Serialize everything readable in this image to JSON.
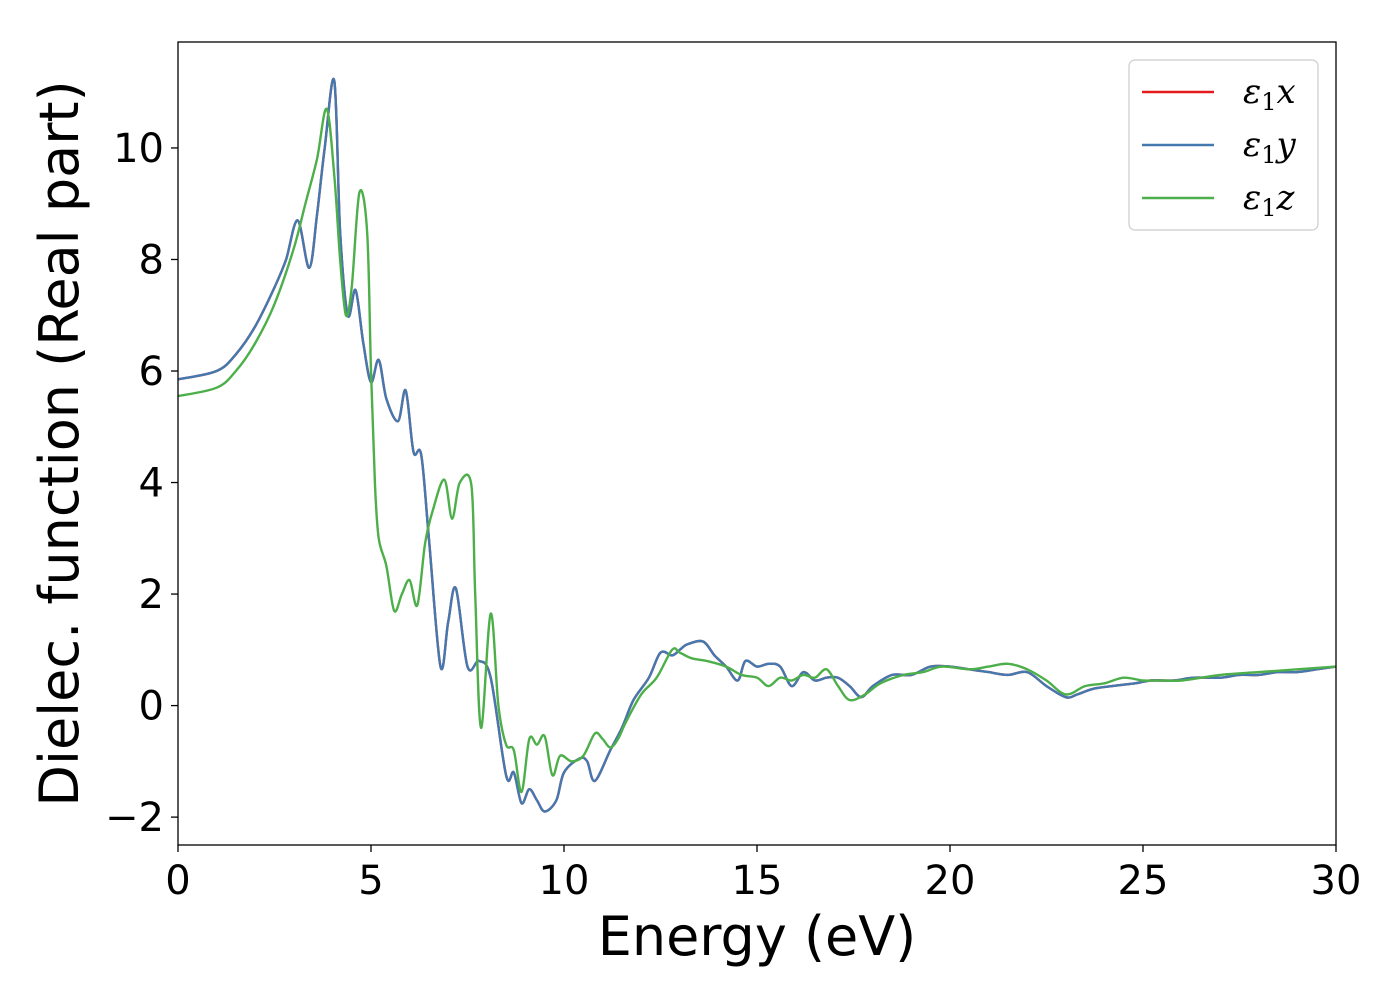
{
  "chart_data": {
    "type": "line",
    "title": "",
    "xlabel": "Energy (eV)",
    "ylabel": "Dielec. function (Real part)",
    "xlim": [
      0,
      30
    ],
    "ylim": [
      -2.5,
      11.9
    ],
    "xticks": [
      0,
      5,
      10,
      15,
      20,
      25,
      30
    ],
    "yticks": [
      -2,
      0,
      2,
      4,
      6,
      8,
      10
    ],
    "xtick_labels": [
      "0",
      "5",
      "10",
      "15",
      "20",
      "25",
      "30"
    ],
    "ytick_labels": [
      "−2",
      "0",
      "2",
      "4",
      "6",
      "8",
      "10"
    ],
    "grid": false,
    "legend_position": "top-right",
    "series": [
      {
        "name": "ε1x",
        "name_base": "ε",
        "name_sub": "1",
        "name_suffix": "x",
        "color": "#e41a1c",
        "x": [
          0,
          1,
          1.5,
          2,
          2.5,
          2.8,
          3.1,
          3.4,
          3.6,
          3.8,
          4.05,
          4.2,
          4.4,
          4.6,
          4.8,
          5.0,
          5.2,
          5.4,
          5.7,
          5.9,
          6.1,
          6.3,
          6.5,
          6.8,
          7.0,
          7.2,
          7.5,
          7.8,
          8.1,
          8.5,
          8.7,
          8.9,
          9.1,
          9.3,
          9.5,
          9.8,
          10.0,
          10.4,
          10.6,
          10.8,
          11.2,
          11.5,
          11.8,
          12.2,
          12.5,
          12.8,
          13.0,
          13.2,
          13.6,
          13.9,
          14.2,
          14.5,
          14.7,
          15.0,
          15.3,
          15.6,
          15.9,
          16.2,
          16.5,
          16.8,
          17.1,
          17.4,
          17.7,
          18.0,
          18.5,
          19.0,
          19.5,
          20.0,
          20.5,
          21.0,
          21.5,
          22.0,
          22.5,
          23.0,
          23.3,
          23.7,
          24.2,
          24.8,
          25.2,
          25.8,
          26.3,
          27.0,
          27.5,
          28.0,
          28.5,
          29.0,
          29.5,
          30.0
        ],
        "y": [
          5.85,
          6.0,
          6.3,
          6.8,
          7.5,
          8.0,
          8.7,
          7.85,
          8.8,
          10.0,
          11.2,
          8.5,
          7.0,
          7.45,
          6.5,
          5.8,
          6.2,
          5.5,
          5.1,
          5.65,
          4.55,
          4.5,
          3.0,
          0.7,
          1.5,
          2.1,
          0.7,
          0.8,
          0.5,
          -1.25,
          -1.2,
          -1.75,
          -1.5,
          -1.7,
          -1.9,
          -1.7,
          -1.2,
          -0.95,
          -1.0,
          -1.35,
          -0.8,
          -0.4,
          0.1,
          0.5,
          0.95,
          0.9,
          1.0,
          1.1,
          1.15,
          0.9,
          0.7,
          0.45,
          0.8,
          0.7,
          0.75,
          0.7,
          0.35,
          0.6,
          0.45,
          0.5,
          0.5,
          0.35,
          0.15,
          0.35,
          0.55,
          0.55,
          0.7,
          0.7,
          0.65,
          0.6,
          0.55,
          0.6,
          0.35,
          0.15,
          0.2,
          0.3,
          0.35,
          0.4,
          0.45,
          0.45,
          0.5,
          0.5,
          0.55,
          0.55,
          0.6,
          0.6,
          0.65,
          0.7
        ]
      },
      {
        "name": "ε1y",
        "name_base": "ε",
        "name_sub": "1",
        "name_suffix": "y",
        "color": "#4479b0",
        "x": [
          0,
          1,
          1.5,
          2,
          2.5,
          2.8,
          3.1,
          3.4,
          3.6,
          3.8,
          4.05,
          4.2,
          4.4,
          4.6,
          4.8,
          5.0,
          5.2,
          5.4,
          5.7,
          5.9,
          6.1,
          6.3,
          6.5,
          6.8,
          7.0,
          7.2,
          7.5,
          7.8,
          8.1,
          8.5,
          8.7,
          8.9,
          9.1,
          9.3,
          9.5,
          9.8,
          10.0,
          10.4,
          10.6,
          10.8,
          11.2,
          11.5,
          11.8,
          12.2,
          12.5,
          12.8,
          13.0,
          13.2,
          13.6,
          13.9,
          14.2,
          14.5,
          14.7,
          15.0,
          15.3,
          15.6,
          15.9,
          16.2,
          16.5,
          16.8,
          17.1,
          17.4,
          17.7,
          18.0,
          18.5,
          19.0,
          19.5,
          20.0,
          20.5,
          21.0,
          21.5,
          22.0,
          22.5,
          23.0,
          23.3,
          23.7,
          24.2,
          24.8,
          25.2,
          25.8,
          26.3,
          27.0,
          27.5,
          28.0,
          28.5,
          29.0,
          29.5,
          30.0
        ],
        "y": [
          5.85,
          6.0,
          6.3,
          6.8,
          7.5,
          8.0,
          8.7,
          7.85,
          8.8,
          10.0,
          11.2,
          8.5,
          7.0,
          7.45,
          6.5,
          5.8,
          6.2,
          5.5,
          5.1,
          5.65,
          4.55,
          4.5,
          3.0,
          0.7,
          1.5,
          2.1,
          0.7,
          0.8,
          0.5,
          -1.25,
          -1.2,
          -1.75,
          -1.5,
          -1.7,
          -1.9,
          -1.7,
          -1.2,
          -0.95,
          -1.0,
          -1.35,
          -0.8,
          -0.4,
          0.1,
          0.5,
          0.95,
          0.9,
          1.0,
          1.1,
          1.15,
          0.9,
          0.7,
          0.45,
          0.8,
          0.7,
          0.75,
          0.7,
          0.35,
          0.6,
          0.45,
          0.5,
          0.5,
          0.35,
          0.15,
          0.35,
          0.55,
          0.55,
          0.7,
          0.7,
          0.65,
          0.6,
          0.55,
          0.6,
          0.35,
          0.15,
          0.2,
          0.3,
          0.35,
          0.4,
          0.45,
          0.45,
          0.5,
          0.5,
          0.55,
          0.55,
          0.6,
          0.6,
          0.65,
          0.7
        ]
      },
      {
        "name": "ε1z",
        "name_base": "ε",
        "name_sub": "1",
        "name_suffix": "z",
        "color": "#4daf4a",
        "x": [
          0,
          1,
          1.5,
          2,
          2.5,
          3.0,
          3.3,
          3.6,
          3.85,
          4.05,
          4.2,
          4.35,
          4.5,
          4.7,
          4.9,
          5.0,
          5.1,
          5.2,
          5.4,
          5.6,
          5.8,
          6.0,
          6.2,
          6.4,
          6.6,
          6.9,
          7.1,
          7.3,
          7.6,
          7.7,
          7.85,
          8.1,
          8.3,
          8.5,
          8.7,
          8.9,
          9.1,
          9.3,
          9.5,
          9.7,
          9.9,
          10.2,
          10.5,
          10.8,
          11.0,
          11.2,
          11.4,
          11.6,
          12.0,
          12.4,
          12.8,
          13.0,
          13.3,
          13.7,
          14.2,
          14.6,
          15.0,
          15.3,
          15.6,
          15.9,
          16.2,
          16.5,
          16.8,
          17.1,
          17.4,
          17.8,
          18.2,
          18.8,
          19.3,
          19.8,
          20.5,
          21.0,
          21.5,
          22.0,
          22.5,
          23.0,
          23.5,
          24.0,
          24.5,
          25.0,
          25.5,
          26.0,
          27.0,
          28.0,
          29.0,
          30.0
        ],
        "y": [
          5.55,
          5.7,
          6.0,
          6.5,
          7.2,
          8.2,
          9.0,
          9.8,
          10.7,
          9.5,
          8.0,
          7.0,
          7.5,
          9.2,
          8.5,
          6.0,
          4.0,
          3.0,
          2.5,
          1.7,
          2.0,
          2.25,
          1.8,
          2.9,
          3.5,
          4.05,
          3.35,
          4.0,
          3.95,
          2.0,
          -0.4,
          1.65,
          0.0,
          -0.7,
          -0.8,
          -1.55,
          -0.6,
          -0.7,
          -0.55,
          -1.25,
          -0.9,
          -1.0,
          -0.9,
          -0.5,
          -0.6,
          -0.75,
          -0.6,
          -0.3,
          0.2,
          0.5,
          1.0,
          0.95,
          0.85,
          0.8,
          0.7,
          0.55,
          0.5,
          0.35,
          0.5,
          0.45,
          0.55,
          0.5,
          0.65,
          0.35,
          0.1,
          0.2,
          0.4,
          0.55,
          0.6,
          0.7,
          0.65,
          0.7,
          0.75,
          0.65,
          0.45,
          0.2,
          0.35,
          0.4,
          0.5,
          0.45,
          0.45,
          0.45,
          0.55,
          0.6,
          0.65,
          0.7
        ]
      }
    ]
  }
}
